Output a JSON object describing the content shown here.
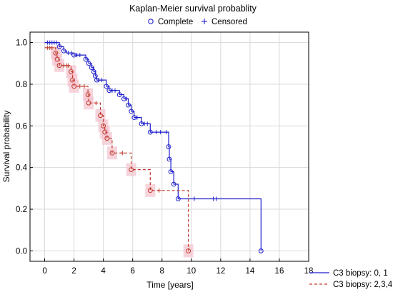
{
  "chart_data": {
    "type": "line",
    "title": "Kaplan-Meier survival probablity",
    "xlabel": "Time [years]",
    "ylabel": "Survival probability",
    "xlim": [
      -1,
      18
    ],
    "ylim": [
      -0.05,
      1.05
    ],
    "xticks": [
      0,
      2,
      4,
      6,
      8,
      10,
      12,
      14,
      16,
      18
    ],
    "yticks": [
      0.0,
      0.2,
      0.4,
      0.6,
      0.8,
      1.0
    ],
    "grid": true,
    "marker_legend": {
      "complete_label": "Complete",
      "censored_label": "Censored",
      "placement": "top-center"
    },
    "series_legend_placement": "bottom-right",
    "series": [
      {
        "name": "C3 biopsy: 0, 1",
        "color": "#1f1fcc",
        "line_style": "solid",
        "steps": [
          [
            0,
            1.0
          ],
          [
            1.0,
            0.98
          ],
          [
            1.3,
            0.96
          ],
          [
            1.5,
            0.95
          ],
          [
            2.0,
            0.94
          ],
          [
            2.8,
            0.92
          ],
          [
            3.0,
            0.9
          ],
          [
            3.2,
            0.88
          ],
          [
            3.35,
            0.86
          ],
          [
            3.45,
            0.84
          ],
          [
            3.55,
            0.82
          ],
          [
            4.2,
            0.79
          ],
          [
            4.4,
            0.77
          ],
          [
            5.1,
            0.75
          ],
          [
            5.4,
            0.73
          ],
          [
            5.7,
            0.7
          ],
          [
            5.9,
            0.67
          ],
          [
            6.1,
            0.64
          ],
          [
            6.6,
            0.61
          ],
          [
            7.2,
            0.57
          ],
          [
            8.45,
            0.5
          ],
          [
            8.5,
            0.44
          ],
          [
            8.6,
            0.38
          ],
          [
            8.8,
            0.32
          ],
          [
            9.1,
            0.25
          ],
          [
            14.75,
            0.0
          ]
        ],
        "end_x": 14.75,
        "complete_events": [
          [
            1.0,
            0.98
          ],
          [
            1.3,
            0.96
          ],
          [
            2.0,
            0.94
          ],
          [
            2.8,
            0.92
          ],
          [
            3.0,
            0.9
          ],
          [
            3.2,
            0.88
          ],
          [
            3.35,
            0.86
          ],
          [
            3.45,
            0.84
          ],
          [
            3.55,
            0.82
          ],
          [
            4.2,
            0.79
          ],
          [
            4.4,
            0.77
          ],
          [
            5.1,
            0.75
          ],
          [
            5.4,
            0.73
          ],
          [
            5.7,
            0.7
          ],
          [
            5.9,
            0.67
          ],
          [
            6.1,
            0.64
          ],
          [
            6.6,
            0.61
          ],
          [
            7.2,
            0.57
          ],
          [
            8.45,
            0.5
          ],
          [
            8.5,
            0.44
          ],
          [
            8.6,
            0.38
          ],
          [
            8.8,
            0.32
          ],
          [
            9.1,
            0.25
          ],
          [
            14.75,
            0.0
          ]
        ],
        "censored": [
          [
            0.2,
            1.0
          ],
          [
            0.35,
            1.0
          ],
          [
            0.5,
            1.0
          ],
          [
            0.65,
            1.0
          ],
          [
            0.8,
            1.0
          ],
          [
            1.6,
            0.95
          ],
          [
            1.8,
            0.95
          ],
          [
            2.2,
            0.94
          ],
          [
            2.4,
            0.94
          ],
          [
            3.7,
            0.82
          ],
          [
            3.9,
            0.82
          ],
          [
            4.6,
            0.77
          ],
          [
            4.8,
            0.77
          ],
          [
            5.6,
            0.73
          ],
          [
            6.3,
            0.64
          ],
          [
            6.8,
            0.61
          ],
          [
            7.0,
            0.61
          ],
          [
            7.6,
            0.57
          ],
          [
            7.9,
            0.57
          ],
          [
            8.3,
            0.57
          ],
          [
            10.2,
            0.25
          ],
          [
            11.5,
            0.25
          ],
          [
            11.7,
            0.25
          ]
        ]
      },
      {
        "name": "C3 biopsy: 2,3,4",
        "color": "#c0392b",
        "line_style": "dashed",
        "ci_color": "#f4c6d0",
        "steps": [
          [
            0,
            0.975
          ],
          [
            0.75,
            0.95
          ],
          [
            0.85,
            0.92
          ],
          [
            1.0,
            0.89
          ],
          [
            1.8,
            0.86
          ],
          [
            1.9,
            0.82
          ],
          [
            2.0,
            0.79
          ],
          [
            2.95,
            0.75
          ],
          [
            3.0,
            0.71
          ],
          [
            3.8,
            0.65
          ],
          [
            4.0,
            0.6
          ],
          [
            4.1,
            0.57
          ],
          [
            4.25,
            0.54
          ],
          [
            4.6,
            0.47
          ],
          [
            5.9,
            0.39
          ],
          [
            7.2,
            0.29
          ],
          [
            9.8,
            0.0
          ]
        ],
        "end_x": 9.8,
        "complete_events": [
          [
            0.75,
            0.95
          ],
          [
            0.85,
            0.92
          ],
          [
            1.0,
            0.89
          ],
          [
            1.8,
            0.86
          ],
          [
            1.9,
            0.82
          ],
          [
            2.0,
            0.79
          ],
          [
            2.95,
            0.75
          ],
          [
            3.0,
            0.71
          ],
          [
            3.8,
            0.65
          ],
          [
            4.0,
            0.6
          ],
          [
            4.1,
            0.57
          ],
          [
            4.25,
            0.54
          ],
          [
            4.6,
            0.47
          ],
          [
            5.9,
            0.39
          ],
          [
            7.2,
            0.29
          ],
          [
            9.8,
            0.0
          ]
        ],
        "censored": [
          [
            0.2,
            0.975
          ],
          [
            0.35,
            0.975
          ],
          [
            0.5,
            0.975
          ],
          [
            1.3,
            0.89
          ],
          [
            1.5,
            0.89
          ],
          [
            1.6,
            0.89
          ],
          [
            2.4,
            0.79
          ],
          [
            2.7,
            0.79
          ],
          [
            3.5,
            0.71
          ],
          [
            5.3,
            0.47
          ],
          [
            7.8,
            0.29
          ]
        ]
      }
    ]
  }
}
